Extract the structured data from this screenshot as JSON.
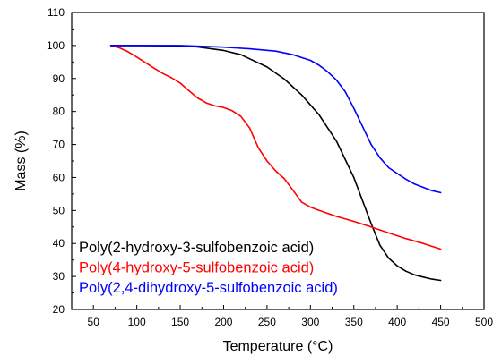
{
  "chart_data": {
    "type": "line",
    "title": "",
    "xlabel": "Temperature (°C)",
    "ylabel": "Mass (%)",
    "xlim": [
      25,
      500
    ],
    "ylim": [
      20,
      110
    ],
    "xticks": [
      50,
      100,
      150,
      200,
      250,
      300,
      350,
      400,
      450,
      500
    ],
    "yticks": [
      20,
      30,
      40,
      50,
      60,
      70,
      80,
      90,
      100,
      110
    ],
    "grid": false,
    "legend_position": "bottom-left",
    "series": [
      {
        "name": "Poly(2-hydroxy-3-sulfobenzoic acid)",
        "color": "#000000",
        "x": [
          70,
          100,
          150,
          170,
          200,
          220,
          250,
          270,
          290,
          310,
          330,
          350,
          360,
          370,
          380,
          390,
          400,
          410,
          420,
          430,
          440,
          450
        ],
        "y": [
          100,
          100,
          99.9,
          99.6,
          98.5,
          97.2,
          93.5,
          89.8,
          85,
          79,
          71,
          60,
          53,
          46,
          39.5,
          35.6,
          33.2,
          31.6,
          30.5,
          29.8,
          29.2,
          28.8
        ]
      },
      {
        "name": "Poly(4-hydroxy-5-sulfobenzoic acid)",
        "color": "#ff0000",
        "x": [
          70,
          80,
          90,
          100,
          110,
          120,
          130,
          140,
          150,
          160,
          170,
          180,
          190,
          200,
          210,
          220,
          230,
          240,
          250,
          260,
          270,
          280,
          290,
          300,
          310,
          330,
          350,
          370,
          390,
          410,
          430,
          450
        ],
        "y": [
          100,
          99.3,
          98.1,
          96.5,
          94.8,
          93.1,
          91.5,
          90.2,
          88.6,
          86.3,
          84.1,
          82.6,
          81.7,
          81.2,
          80.2,
          78.5,
          75,
          69,
          65,
          62,
          59.6,
          56.1,
          52.5,
          51,
          50,
          48.2,
          46.7,
          45,
          43.2,
          41.5,
          40,
          38.3
        ]
      },
      {
        "name": "Poly(2,4-dihydroxy-5-sulfobenzoic acid)",
        "color": "#0000ff",
        "x": [
          70,
          150,
          200,
          230,
          260,
          280,
          300,
          310,
          320,
          330,
          340,
          350,
          360,
          370,
          380,
          390,
          400,
          410,
          420,
          430,
          440,
          450
        ],
        "y": [
          100,
          100,
          99.5,
          99,
          98.3,
          97.2,
          95.5,
          94,
          92,
          89.5,
          86,
          81,
          75.5,
          70,
          66,
          63,
          61.2,
          59.5,
          58,
          57,
          56,
          55.4
        ]
      }
    ]
  }
}
